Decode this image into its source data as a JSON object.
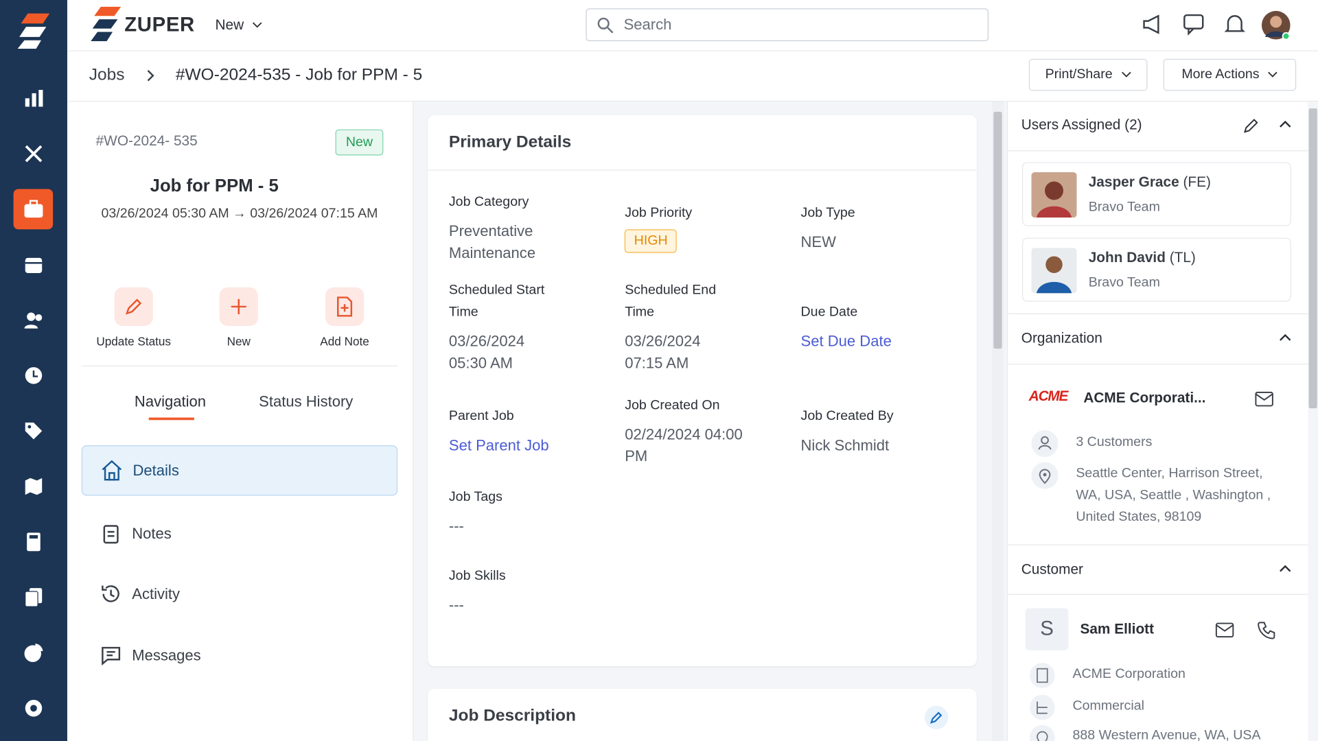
{
  "topbar": {
    "brand": "ZUPER",
    "new_menu": "New",
    "search_placeholder": "Search"
  },
  "breadcrumb": {
    "root": "Jobs",
    "current": "#WO-2024-535 - Job for PPM - 5"
  },
  "header_actions": [
    "Print/Share",
    "More Actions"
  ],
  "job_card": {
    "number": "#WO-2024- 535",
    "status": "New",
    "title": "Job for PPM - 5",
    "schedule": "03/26/2024 05:30 AM → 03/26/2024 07:15 AM"
  },
  "quick_actions": [
    "Update Status",
    "New",
    "Add Note"
  ],
  "tabs": [
    "Navigation",
    "Status History"
  ],
  "nav": [
    "Details",
    "Notes",
    "Activity",
    "Messages"
  ],
  "primary_details": {
    "title": "Primary Details",
    "rows": [
      [
        {
          "label": "Job Category",
          "value": "Preventative Maintenance"
        },
        {
          "label": "Job Priority",
          "value": "HIGH"
        },
        {
          "label": "Job Type",
          "value": "NEW"
        }
      ],
      [
        {
          "label": "Scheduled Start Time",
          "value": "03/26/2024 05:30 AM"
        },
        {
          "label": "Scheduled End Time",
          "value": "03/26/2024 07:15 AM"
        },
        {
          "label": "Due Date",
          "value": "Set Due Date"
        }
      ],
      [
        {
          "label": "Parent Job",
          "value": "Set Parent Job"
        },
        {
          "label": "Job Created On",
          "value": "02/24/2024 04:00 PM"
        },
        {
          "label": "Job Created By",
          "value": "Nick Schmidt"
        }
      ],
      [
        {
          "label": "Job Tags",
          "value": "---"
        }
      ],
      [
        {
          "label": "Job Skills",
          "value": "---"
        }
      ]
    ]
  },
  "job_description": {
    "title": "Job Description"
  },
  "users_assigned": {
    "title": "Users Assigned (2)",
    "users": [
      {
        "name": "Jasper Grace",
        "role": "(FE)",
        "team": "Bravo Team"
      },
      {
        "name": "John David",
        "role": "(TL)",
        "team": "Bravo Team"
      }
    ]
  },
  "organization": {
    "title": "Organization",
    "logo": "ACME",
    "name": "ACME Corporati...",
    "customers": "3 Customers",
    "address": "Seattle Center, Harrison Street, WA, USA, Seattle , Washington , United States, 98109"
  },
  "customer": {
    "title": "Customer",
    "initial": "S",
    "name": "Sam Elliott",
    "company": "ACME Corporation",
    "type": "Commercial",
    "address": "888 Western Avenue, WA, USA"
  }
}
